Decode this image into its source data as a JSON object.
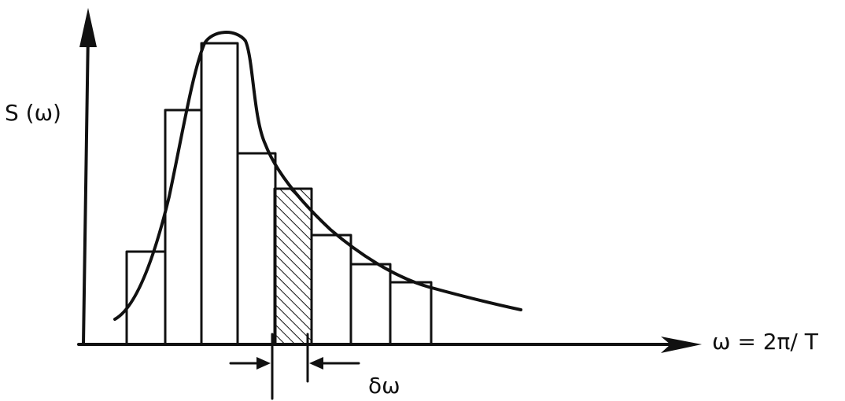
{
  "labels": {
    "y_axis": "S (ω)",
    "x_axis": "ω = 2π/ T",
    "bin_width": "δω"
  },
  "colors": {
    "ink": "#111111",
    "background": "#ffffff"
  },
  "spectrum": {
    "bins": [
      {
        "index": 1,
        "height": 0.35
      },
      {
        "index": 2,
        "height": 0.88
      },
      {
        "index": 3,
        "height": 1.13
      },
      {
        "index": 4,
        "height": 0.73
      },
      {
        "index": 5,
        "height": 0.6,
        "hatched": true
      },
      {
        "index": 6,
        "height": 0.42
      },
      {
        "index": 7,
        "height": 0.31
      },
      {
        "index": 8,
        "height": 0.24
      }
    ]
  }
}
